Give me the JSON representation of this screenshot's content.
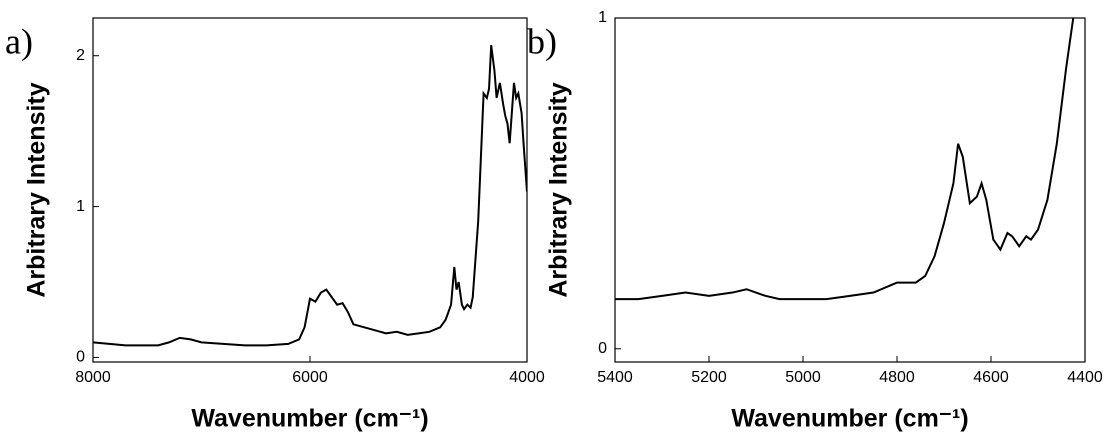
{
  "chart_data": [
    {
      "type": "line",
      "panel_label": "a)",
      "ylabel": "Arbitrary Intensity",
      "xlabel": "Wavenumber (cm⁻¹)",
      "xlim": [
        8000,
        4000
      ],
      "ylim": [
        -0.03,
        2.25
      ],
      "xticks": [
        8000,
        6000,
        4000
      ],
      "yticks": [
        0,
        1,
        2
      ],
      "series": [
        {
          "color": "#000000",
          "x": [
            8000,
            7700,
            7400,
            7300,
            7200,
            7100,
            7000,
            6800,
            6600,
            6400,
            6200,
            6100,
            6050,
            6000,
            5950,
            5900,
            5850,
            5800,
            5750,
            5700,
            5650,
            5600,
            5500,
            5400,
            5300,
            5200,
            5100,
            5000,
            4900,
            4800,
            4750,
            4700,
            4670,
            4650,
            4630,
            4600,
            4580,
            4550,
            4520,
            4500,
            4450,
            4400,
            4370,
            4350,
            4330,
            4300,
            4280,
            4250,
            4220,
            4200,
            4180,
            4160,
            4140,
            4120,
            4100,
            4080,
            4050,
            4030,
            4000
          ],
          "values": [
            0.1,
            0.08,
            0.08,
            0.1,
            0.13,
            0.12,
            0.1,
            0.09,
            0.08,
            0.08,
            0.09,
            0.12,
            0.2,
            0.39,
            0.37,
            0.43,
            0.45,
            0.4,
            0.35,
            0.36,
            0.3,
            0.22,
            0.2,
            0.18,
            0.16,
            0.17,
            0.15,
            0.16,
            0.17,
            0.2,
            0.25,
            0.35,
            0.6,
            0.45,
            0.5,
            0.35,
            0.32,
            0.35,
            0.33,
            0.4,
            0.9,
            1.75,
            1.72,
            1.78,
            2.07,
            1.9,
            1.72,
            1.82,
            1.68,
            1.6,
            1.55,
            1.42,
            1.62,
            1.82,
            1.72,
            1.75,
            1.62,
            1.4,
            1.1
          ]
        }
      ]
    },
    {
      "type": "line",
      "panel_label": "b)",
      "ylabel": "Arbitrary Intensity",
      "xlabel": "Wavenumber (cm⁻¹)",
      "xlim": [
        5400,
        4400
      ],
      "ylim": [
        -0.04,
        1
      ],
      "xticks": [
        5400,
        5200,
        5000,
        4800,
        4600,
        4400
      ],
      "yticks": [
        0,
        1
      ],
      "series": [
        {
          "color": "#000000",
          "x": [
            5400,
            5350,
            5300,
            5250,
            5200,
            5150,
            5120,
            5080,
            5050,
            5000,
            4950,
            4900,
            4850,
            4800,
            4780,
            4760,
            4740,
            4720,
            4700,
            4680,
            4670,
            4660,
            4645,
            4630,
            4620,
            4610,
            4595,
            4580,
            4565,
            4555,
            4540,
            4525,
            4515,
            4500,
            4480,
            4460,
            4440,
            4425
          ],
          "values": [
            0.15,
            0.15,
            0.16,
            0.17,
            0.16,
            0.17,
            0.18,
            0.16,
            0.15,
            0.15,
            0.15,
            0.16,
            0.17,
            0.2,
            0.2,
            0.2,
            0.22,
            0.28,
            0.38,
            0.5,
            0.62,
            0.58,
            0.44,
            0.46,
            0.5,
            0.45,
            0.33,
            0.3,
            0.35,
            0.34,
            0.31,
            0.34,
            0.33,
            0.36,
            0.45,
            0.62,
            0.85,
            1.0
          ]
        }
      ]
    }
  ]
}
